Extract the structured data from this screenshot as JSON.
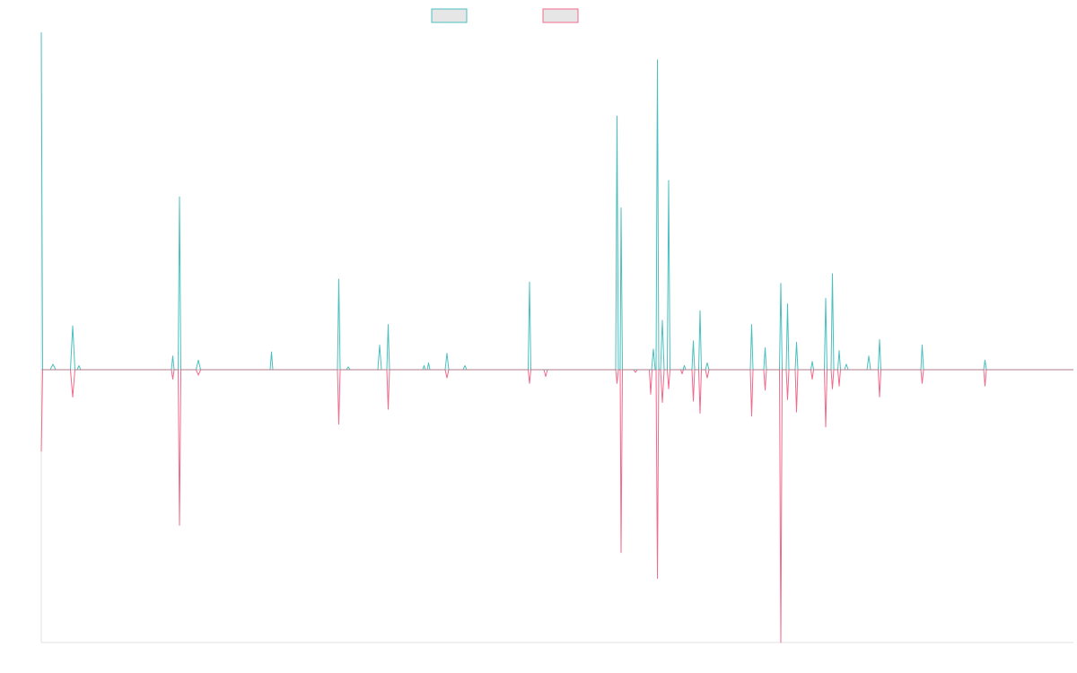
{
  "colors": {
    "series_a": "#4bbfbf",
    "series_b": "#f06a8c",
    "legend_fill": "#e6e6e6",
    "axis": "#e0e0e0",
    "baseline": "#888888",
    "background": "#ffffff"
  },
  "chart_data": {
    "type": "line",
    "title": "",
    "xlabel": "",
    "ylabel": "",
    "grid": false,
    "legend_position": "top-center",
    "xlim": [
      0,
      230
    ],
    "ylim": [
      -1,
      1.23
    ],
    "series": [
      {
        "key": "series_a",
        "color": "#4bbfbf",
        "points": [
          [
            0,
            1.23
          ],
          [
            0.3,
            0
          ],
          [
            2,
            0
          ],
          [
            2.6,
            0.02
          ],
          [
            3.2,
            0
          ],
          [
            6.5,
            0
          ],
          [
            7,
            0.16
          ],
          [
            7.5,
            0
          ],
          [
            8,
            0
          ],
          [
            8.4,
            0.015
          ],
          [
            8.8,
            0
          ],
          [
            29,
            0
          ],
          [
            29.3,
            0.05
          ],
          [
            29.6,
            0
          ],
          [
            30.5,
            0
          ],
          [
            30.8,
            0.63
          ],
          [
            31.1,
            0
          ],
          [
            34.5,
            0
          ],
          [
            35,
            0.035
          ],
          [
            35.5,
            0
          ],
          [
            51,
            0
          ],
          [
            51.3,
            0.065
          ],
          [
            51.6,
            0
          ],
          [
            66,
            0
          ],
          [
            66.3,
            0.33
          ],
          [
            66.6,
            0
          ],
          [
            68,
            0
          ],
          [
            68.4,
            0.01
          ],
          [
            68.8,
            0
          ],
          [
            75,
            0
          ],
          [
            75.4,
            0.09
          ],
          [
            75.8,
            0
          ],
          [
            77,
            0
          ],
          [
            77.3,
            0.165
          ],
          [
            77.6,
            0
          ],
          [
            85,
            0
          ],
          [
            85.3,
            0.015
          ],
          [
            85.6,
            0
          ],
          [
            86,
            0
          ],
          [
            86.3,
            0.025
          ],
          [
            86.6,
            0
          ],
          [
            90,
            0
          ],
          [
            90.4,
            0.06
          ],
          [
            90.8,
            0
          ],
          [
            94,
            0
          ],
          [
            94.4,
            0.015
          ],
          [
            94.8,
            0
          ],
          [
            108.5,
            0
          ],
          [
            108.8,
            0.32
          ],
          [
            109.1,
            0
          ],
          [
            128,
            0
          ],
          [
            128.3,
            0.925
          ],
          [
            128.6,
            0
          ],
          [
            129,
            0
          ],
          [
            129.2,
            0.59
          ],
          [
            129.5,
            0
          ],
          [
            136,
            0
          ],
          [
            136.4,
            0.075
          ],
          [
            136.8,
            0
          ],
          [
            137,
            0
          ],
          [
            137.3,
            1.13
          ],
          [
            137.6,
            0
          ],
          [
            138,
            0
          ],
          [
            138.4,
            0.18
          ],
          [
            138.8,
            0
          ],
          [
            139.5,
            0
          ],
          [
            139.8,
            0.69
          ],
          [
            140.1,
            0
          ],
          [
            143,
            0
          ],
          [
            143.3,
            0.015
          ],
          [
            143.6,
            0
          ],
          [
            145,
            0
          ],
          [
            145.3,
            0.105
          ],
          [
            145.6,
            0
          ],
          [
            146.5,
            0
          ],
          [
            146.8,
            0.215
          ],
          [
            147.1,
            0
          ],
          [
            148,
            0
          ],
          [
            148.4,
            0.025
          ],
          [
            148.8,
            0
          ],
          [
            158,
            0
          ],
          [
            158.3,
            0.165
          ],
          [
            158.6,
            0
          ],
          [
            161,
            0
          ],
          [
            161.3,
            0.08
          ],
          [
            161.6,
            0
          ],
          [
            164.5,
            0
          ],
          [
            164.8,
            0.315
          ],
          [
            165.1,
            0
          ],
          [
            166,
            0
          ],
          [
            166.3,
            0.24
          ],
          [
            166.6,
            0
          ],
          [
            168,
            0
          ],
          [
            168.3,
            0.1
          ],
          [
            168.6,
            0
          ],
          [
            171.5,
            0
          ],
          [
            171.8,
            0.03
          ],
          [
            172.1,
            0
          ],
          [
            174.5,
            0
          ],
          [
            174.8,
            0.26
          ],
          [
            175.1,
            0
          ],
          [
            176,
            0
          ],
          [
            176.3,
            0.35
          ],
          [
            176.6,
            0
          ],
          [
            177.5,
            0
          ],
          [
            177.8,
            0.07
          ],
          [
            178.1,
            0
          ],
          [
            179,
            0
          ],
          [
            179.4,
            0.02
          ],
          [
            179.8,
            0
          ],
          [
            184,
            0
          ],
          [
            184.4,
            0.05
          ],
          [
            184.8,
            0
          ],
          [
            186.5,
            0
          ],
          [
            186.8,
            0.11
          ],
          [
            187.1,
            0
          ],
          [
            196,
            0
          ],
          [
            196.3,
            0.09
          ],
          [
            196.6,
            0
          ],
          [
            210,
            0
          ],
          [
            210.3,
            0.035
          ],
          [
            210.6,
            0
          ],
          [
            230,
            0
          ]
        ]
      },
      {
        "key": "series_b",
        "color": "#f06a8c",
        "points": [
          [
            0,
            -0.3
          ],
          [
            0.3,
            0
          ],
          [
            6.5,
            0
          ],
          [
            7,
            -0.1
          ],
          [
            7.5,
            0
          ],
          [
            29,
            0
          ],
          [
            29.3,
            -0.035
          ],
          [
            29.6,
            0
          ],
          [
            30.5,
            0
          ],
          [
            30.8,
            -0.57
          ],
          [
            31.1,
            0
          ],
          [
            34.5,
            0
          ],
          [
            35,
            -0.02
          ],
          [
            35.5,
            0
          ],
          [
            66,
            0
          ],
          [
            66.3,
            -0.2
          ],
          [
            66.6,
            0
          ],
          [
            77,
            0
          ],
          [
            77.3,
            -0.145
          ],
          [
            77.6,
            0
          ],
          [
            90,
            0
          ],
          [
            90.4,
            -0.03
          ],
          [
            90.8,
            0
          ],
          [
            108.5,
            0
          ],
          [
            108.8,
            -0.05
          ],
          [
            109.1,
            0
          ],
          [
            112,
            0
          ],
          [
            112.4,
            -0.025
          ],
          [
            112.8,
            0
          ],
          [
            128,
            0
          ],
          [
            128.3,
            -0.05
          ],
          [
            128.6,
            0
          ],
          [
            129,
            0
          ],
          [
            129.2,
            -0.67
          ],
          [
            129.5,
            0
          ],
          [
            132,
            0
          ],
          [
            132.4,
            -0.01
          ],
          [
            132.8,
            0
          ],
          [
            135.5,
            0
          ],
          [
            135.8,
            -0.09
          ],
          [
            136.1,
            0
          ],
          [
            137,
            0
          ],
          [
            137.3,
            -0.765
          ],
          [
            137.6,
            0
          ],
          [
            138,
            0
          ],
          [
            138.4,
            -0.12
          ],
          [
            138.8,
            0
          ],
          [
            139.5,
            0
          ],
          [
            139.8,
            -0.07
          ],
          [
            140.1,
            0
          ],
          [
            142.5,
            0
          ],
          [
            142.8,
            -0.015
          ],
          [
            143.1,
            0
          ],
          [
            145,
            0
          ],
          [
            145.3,
            -0.115
          ],
          [
            145.6,
            0
          ],
          [
            146.5,
            0
          ],
          [
            146.8,
            -0.16
          ],
          [
            147.1,
            0
          ],
          [
            148,
            0
          ],
          [
            148.4,
            -0.03
          ],
          [
            148.8,
            0
          ],
          [
            158,
            0
          ],
          [
            158.3,
            -0.17
          ],
          [
            158.6,
            0
          ],
          [
            161,
            0
          ],
          [
            161.3,
            -0.075
          ],
          [
            161.6,
            0
          ],
          [
            164.5,
            0
          ],
          [
            164.8,
            -1.0
          ],
          [
            165.1,
            0
          ],
          [
            166,
            0
          ],
          [
            166.3,
            -0.11
          ],
          [
            166.6,
            0
          ],
          [
            168,
            0
          ],
          [
            168.3,
            -0.155
          ],
          [
            168.6,
            0
          ],
          [
            171.5,
            0
          ],
          [
            171.8,
            -0.035
          ],
          [
            172.1,
            0
          ],
          [
            174.5,
            0
          ],
          [
            174.8,
            -0.21
          ],
          [
            175.1,
            0
          ],
          [
            176,
            0
          ],
          [
            176.3,
            -0.07
          ],
          [
            176.6,
            0
          ],
          [
            177.5,
            0
          ],
          [
            177.8,
            -0.06
          ],
          [
            178.1,
            0
          ],
          [
            186.5,
            0
          ],
          [
            186.8,
            -0.1
          ],
          [
            187.1,
            0
          ],
          [
            196,
            0
          ],
          [
            196.3,
            -0.05
          ],
          [
            196.6,
            0
          ],
          [
            210,
            0
          ],
          [
            210.3,
            -0.06
          ],
          [
            210.6,
            0
          ],
          [
            230,
            0
          ]
        ]
      }
    ]
  }
}
